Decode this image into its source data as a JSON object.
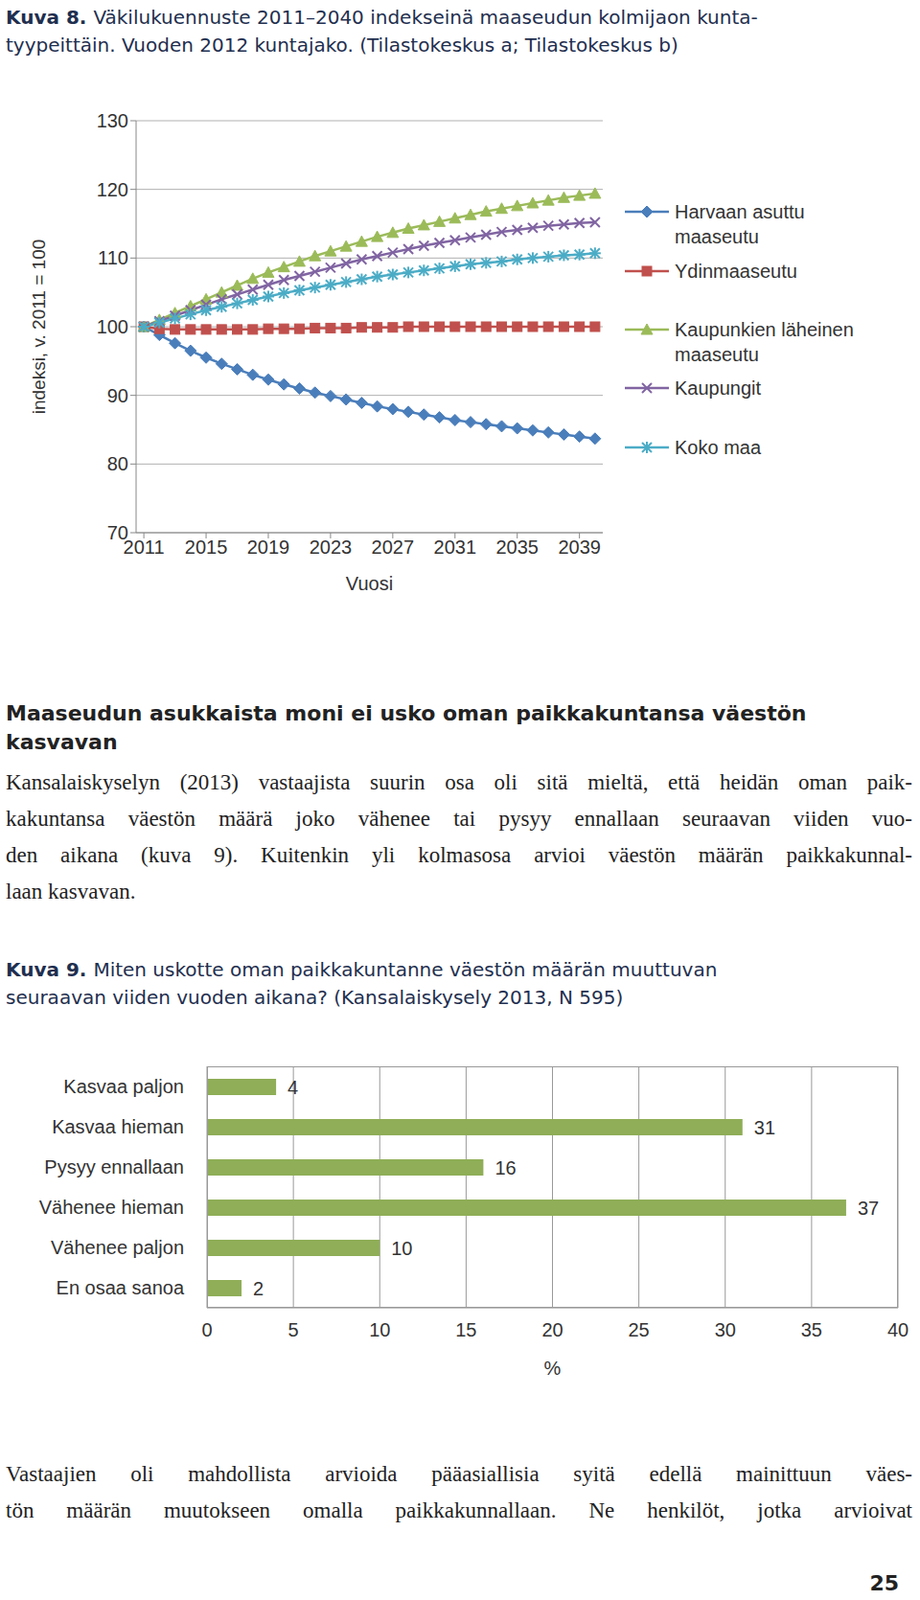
{
  "chart_data": [
    {
      "type": "line",
      "label": "Kuva 8.",
      "title": [
        "Väkilukuennuste 2011–2040 indekseinä maaseudun kolmijaon kunta-",
        "tyypeittäin. Vuoden 2012 kuntajako. (Tilastokeskus a; Tilastokeskus b)"
      ],
      "xlabel": "Vuosi",
      "ylabel": "indeksi, v. 2011 = 100",
      "x": [
        2011,
        2012,
        2013,
        2014,
        2015,
        2016,
        2017,
        2018,
        2019,
        2020,
        2021,
        2022,
        2023,
        2024,
        2025,
        2026,
        2027,
        2028,
        2029,
        2030,
        2031,
        2032,
        2033,
        2034,
        2035,
        2036,
        2037,
        2038,
        2039,
        2040
      ],
      "xlim": [
        2010.5,
        2040.5
      ],
      "xticks": [
        2011,
        2015,
        2019,
        2023,
        2027,
        2031,
        2035,
        2039
      ],
      "ylim": [
        70,
        130
      ],
      "yticks": [
        70,
        80,
        90,
        100,
        110,
        120,
        130
      ],
      "grid": true,
      "legend": "right",
      "series": [
        {
          "name": "Harvaan asuttu maaseutu",
          "color": "#4a7ebb",
          "marker": "diamond",
          "values": [
            100,
            98.8,
            97.6,
            96.5,
            95.5,
            94.6,
            93.8,
            93.0,
            92.3,
            91.6,
            91.0,
            90.4,
            89.9,
            89.4,
            88.9,
            88.4,
            88.0,
            87.6,
            87.2,
            86.8,
            86.4,
            86.1,
            85.8,
            85.5,
            85.2,
            84.9,
            84.6,
            84.3,
            84.0,
            83.7
          ]
        },
        {
          "name": "Ydinmaaseutu",
          "color": "#c0504d",
          "marker": "square",
          "values": [
            100,
            99.7,
            99.6,
            99.6,
            99.6,
            99.6,
            99.6,
            99.6,
            99.7,
            99.7,
            99.7,
            99.8,
            99.8,
            99.8,
            99.9,
            99.9,
            99.9,
            100,
            100,
            100,
            100,
            100,
            100,
            100,
            100,
            100,
            100,
            100,
            100,
            100
          ]
        },
        {
          "name": "Kaupunkien läheinen maaseutu",
          "color": "#9bbb59",
          "marker": "triangle",
          "values": [
            100,
            101,
            102,
            103,
            104,
            105,
            106,
            107,
            107.9,
            108.7,
            109.5,
            110.3,
            111,
            111.7,
            112.4,
            113.1,
            113.7,
            114.3,
            114.8,
            115.3,
            115.8,
            116.3,
            116.8,
            117.2,
            117.6,
            118,
            118.4,
            118.8,
            119.1,
            119.4
          ]
        },
        {
          "name": "Kaupungit",
          "color": "#8064a2",
          "marker": "x",
          "values": [
            100,
            100.8,
            101.6,
            102.4,
            103.2,
            104,
            104.7,
            105.4,
            106.1,
            106.8,
            107.4,
            108,
            108.6,
            109.2,
            109.8,
            110.3,
            110.8,
            111.3,
            111.8,
            112.2,
            112.6,
            113,
            113.4,
            113.8,
            114.1,
            114.4,
            114.7,
            114.9,
            115.1,
            115.2
          ]
        },
        {
          "name": "Koko maa",
          "color": "#4bacc6",
          "marker": "star",
          "values": [
            100,
            100.6,
            101.2,
            101.8,
            102.4,
            102.9,
            103.4,
            103.9,
            104.4,
            104.9,
            105.3,
            105.7,
            106.1,
            106.5,
            106.9,
            107.3,
            107.6,
            107.9,
            108.2,
            108.5,
            108.8,
            109.1,
            109.3,
            109.5,
            109.8,
            110,
            110.2,
            110.4,
            110.5,
            110.7
          ]
        }
      ]
    },
    {
      "type": "bar",
      "orientation": "horizontal",
      "label": "Kuva 9.",
      "title": [
        "Miten uskotte oman paikkakuntanne väestön määrän muuttuvan",
        "seuraavan viiden vuoden aikana? (Kansalaiskysely 2013, N 595)"
      ],
      "categories": [
        "Kasvaa paljon",
        "Kasvaa hieman",
        "Pysyy ennallaan",
        "Vähenee hieman",
        "Vähenee paljon",
        "En osaa sanoa"
      ],
      "values": [
        4,
        31,
        16,
        37,
        10,
        2
      ],
      "color": "#8fae57",
      "xlabel": "%",
      "xlim": [
        0,
        40
      ],
      "xticks": [
        0,
        5,
        10,
        15,
        20,
        25,
        30,
        35,
        40
      ],
      "grid": true,
      "data_labels": true
    }
  ],
  "text": {
    "heading": [
      "Maaseudun asukkaista moni ei usko oman paikkakuntansa väestön",
      "kasvavan"
    ],
    "paragraph": [
      "Kansalaiskyselyn (2013) vastaajista suurin osa oli sitä mieltä, että heidän oman paik-",
      "kakuntansa väestön määrä joko vähenee tai pysyy ennallaan seuraavan viiden vuo-",
      "den aikana (kuva 9). Kuitenkin yli kolmasosa arvioi väestön määrän paikkakunnal-",
      "laan kasvavan."
    ],
    "closing": [
      "Vastaajien oli mahdollista arvioida pääasiallisia syitä edellä mainittuun väes-",
      "tön määrän muutokseen omalla paikkakunnallaan. Ne henkilöt, jotka arvioivat"
    ],
    "page_number": 25
  }
}
